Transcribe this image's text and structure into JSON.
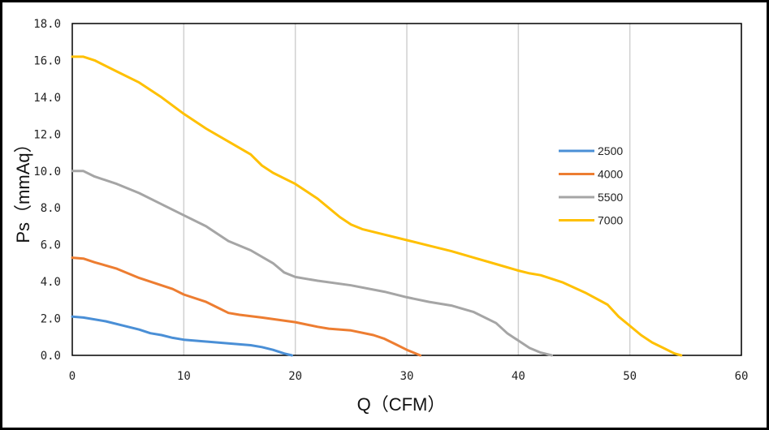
{
  "chart_data": {
    "type": "line",
    "title": "",
    "xlabel": "Q（CFM）",
    "ylabel": "Ps（mmAq）",
    "xlim": [
      0,
      60
    ],
    "ylim": [
      0,
      18
    ],
    "x_ticks": [
      "0",
      "10",
      "20",
      "30",
      "40",
      "50",
      "60"
    ],
    "y_ticks": [
      "0.0",
      "2.0",
      "4.0",
      "6.0",
      "8.0",
      "10.0",
      "12.0",
      "14.0",
      "16.0",
      "18.0"
    ],
    "grid": "vertical",
    "legend_position": "right",
    "series": [
      {
        "name": "2500",
        "color": "#4a8fd6",
        "points": [
          [
            0,
            2.1
          ],
          [
            1,
            2.05
          ],
          [
            3,
            1.85
          ],
          [
            5,
            1.55
          ],
          [
            6,
            1.4
          ],
          [
            7,
            1.2
          ],
          [
            8,
            1.1
          ],
          [
            9,
            0.95
          ],
          [
            10,
            0.85
          ],
          [
            12,
            0.75
          ],
          [
            14,
            0.65
          ],
          [
            16,
            0.55
          ],
          [
            17,
            0.45
          ],
          [
            18,
            0.3
          ],
          [
            19,
            0.1
          ],
          [
            19.7,
            0.0
          ]
        ]
      },
      {
        "name": "4000",
        "color": "#ed7d31",
        "points": [
          [
            0,
            5.3
          ],
          [
            1,
            5.25
          ],
          [
            2,
            5.05
          ],
          [
            4,
            4.7
          ],
          [
            6,
            4.2
          ],
          [
            8,
            3.8
          ],
          [
            9,
            3.6
          ],
          [
            10,
            3.3
          ],
          [
            12,
            2.9
          ],
          [
            13,
            2.6
          ],
          [
            14,
            2.3
          ],
          [
            15,
            2.2
          ],
          [
            17,
            2.05
          ],
          [
            20,
            1.8
          ],
          [
            22,
            1.55
          ],
          [
            23,
            1.45
          ],
          [
            25,
            1.35
          ],
          [
            27,
            1.1
          ],
          [
            28,
            0.9
          ],
          [
            29,
            0.6
          ],
          [
            30,
            0.3
          ],
          [
            31.2,
            0.0
          ]
        ]
      },
      {
        "name": "5500",
        "color": "#a5a5a5",
        "points": [
          [
            0,
            10.0
          ],
          [
            1,
            10.0
          ],
          [
            2,
            9.7
          ],
          [
            4,
            9.3
          ],
          [
            6,
            8.8
          ],
          [
            8,
            8.2
          ],
          [
            10,
            7.6
          ],
          [
            12,
            7.0
          ],
          [
            13,
            6.6
          ],
          [
            14,
            6.2
          ],
          [
            16,
            5.7
          ],
          [
            18,
            5.0
          ],
          [
            19,
            4.5
          ],
          [
            20,
            4.25
          ],
          [
            22,
            4.05
          ],
          [
            25,
            3.8
          ],
          [
            28,
            3.45
          ],
          [
            30,
            3.15
          ],
          [
            32,
            2.9
          ],
          [
            34,
            2.7
          ],
          [
            36,
            2.35
          ],
          [
            38,
            1.75
          ],
          [
            39,
            1.2
          ],
          [
            40,
            0.8
          ],
          [
            41,
            0.4
          ],
          [
            42,
            0.15
          ],
          [
            43,
            0.0
          ]
        ]
      },
      {
        "name": "7000",
        "color": "#ffc000",
        "points": [
          [
            0,
            16.2
          ],
          [
            1,
            16.2
          ],
          [
            2,
            16.0
          ],
          [
            4,
            15.4
          ],
          [
            6,
            14.8
          ],
          [
            8,
            14.0
          ],
          [
            10,
            13.1
          ],
          [
            12,
            12.3
          ],
          [
            14,
            11.6
          ],
          [
            16,
            10.9
          ],
          [
            17,
            10.3
          ],
          [
            18,
            9.9
          ],
          [
            20,
            9.3
          ],
          [
            22,
            8.5
          ],
          [
            24,
            7.5
          ],
          [
            25,
            7.1
          ],
          [
            26,
            6.85
          ],
          [
            28,
            6.55
          ],
          [
            30,
            6.25
          ],
          [
            32,
            5.95
          ],
          [
            34,
            5.65
          ],
          [
            36,
            5.3
          ],
          [
            38,
            4.95
          ],
          [
            40,
            4.6
          ],
          [
            41,
            4.45
          ],
          [
            42,
            4.35
          ],
          [
            44,
            3.95
          ],
          [
            46,
            3.4
          ],
          [
            48,
            2.75
          ],
          [
            49,
            2.1
          ],
          [
            50,
            1.6
          ],
          [
            51,
            1.1
          ],
          [
            52,
            0.7
          ],
          [
            53,
            0.4
          ],
          [
            54,
            0.1
          ],
          [
            54.6,
            0.0
          ]
        ]
      }
    ]
  }
}
